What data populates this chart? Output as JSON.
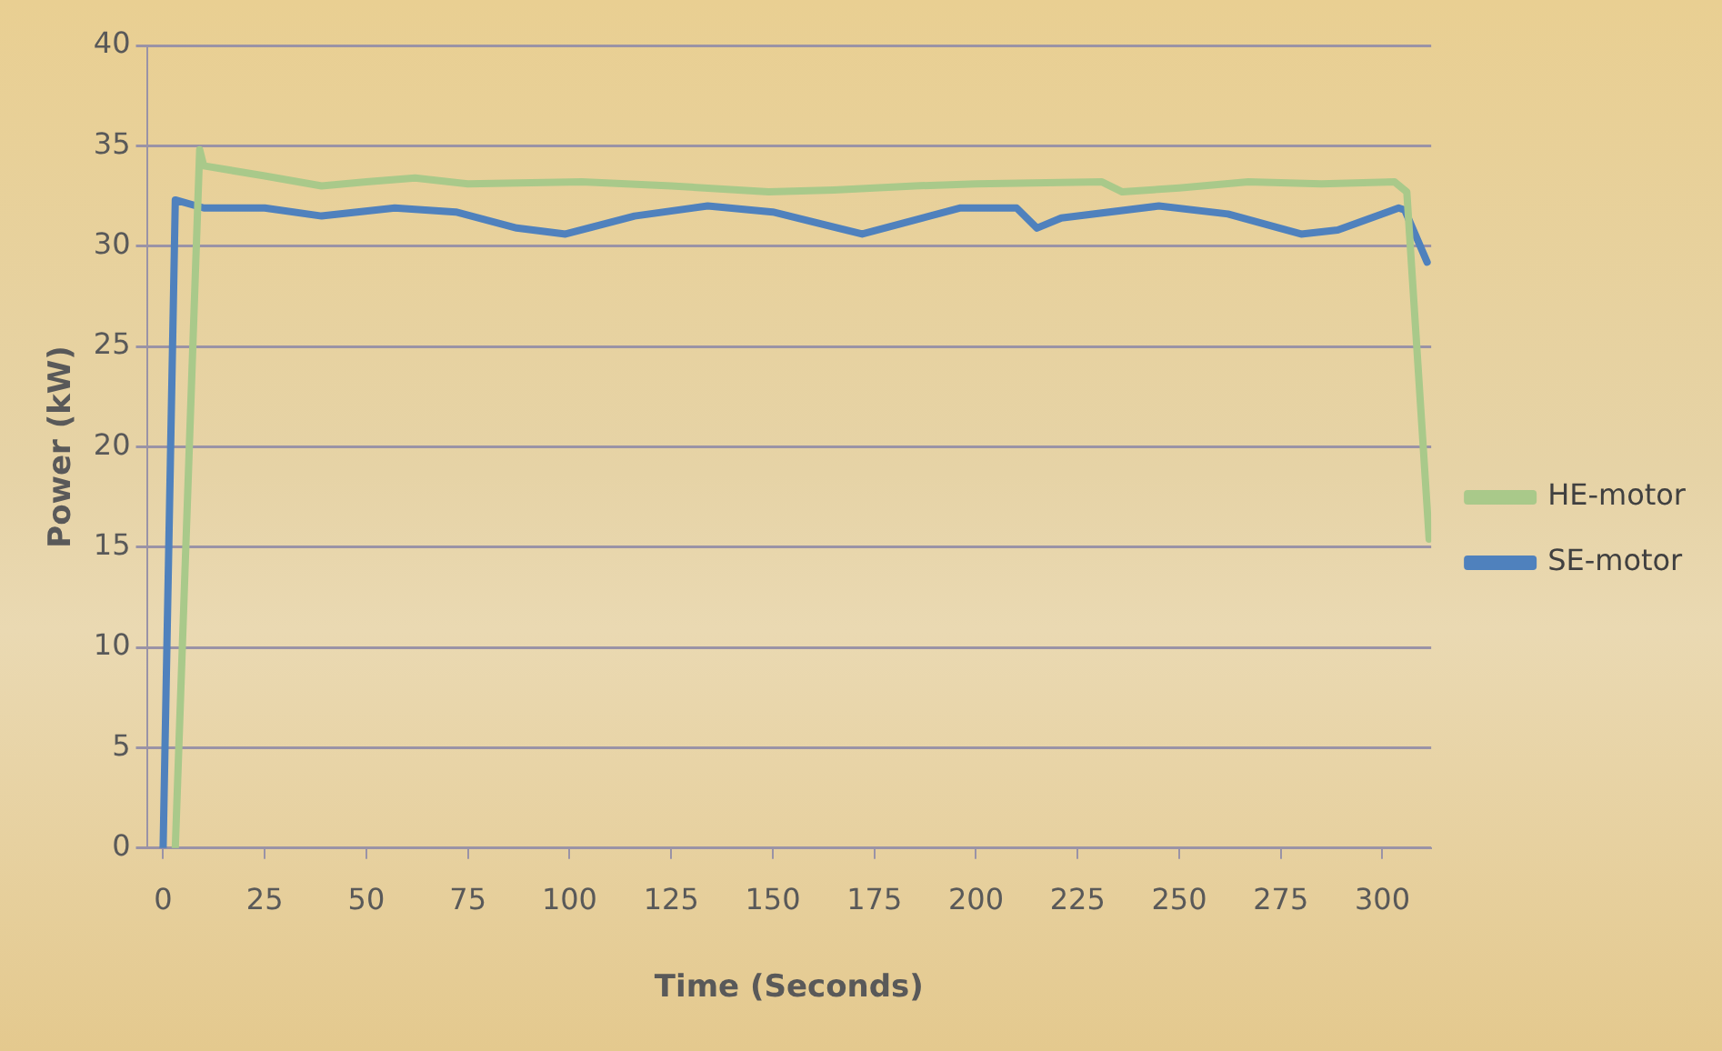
{
  "chart_data": {
    "type": "line",
    "xlabel": "Time (Seconds)",
    "ylabel": "Power (kW)",
    "xlim": [
      -4,
      312
    ],
    "xticks": [
      0,
      25,
      50,
      75,
      100,
      125,
      150,
      175,
      200,
      225,
      250,
      275,
      300
    ],
    "ylim": [
      0,
      40
    ],
    "yticks": [
      0,
      5,
      10,
      15,
      20,
      25,
      30,
      35,
      40
    ],
    "grid": "y",
    "legend": "right",
    "marker": "none",
    "line_style": "solid",
    "series": [
      {
        "name": "HE-motor",
        "color": "#a9c98a",
        "x": [
          3,
          9,
          10,
          25,
          39,
          50,
          62,
          75,
          103,
          125,
          149,
          165,
          185,
          200,
          231,
          236,
          250,
          267,
          285,
          303,
          306,
          311.5
        ],
        "values": [
          0,
          34.8,
          34.0,
          33.5,
          33.0,
          33.2,
          33.4,
          33.1,
          33.2,
          33.0,
          32.7,
          32.8,
          33.0,
          33.1,
          33.2,
          32.7,
          32.9,
          33.2,
          33.1,
          33.2,
          32.7,
          15.4
        ]
      },
      {
        "name": "SE-motor",
        "color": "#4f81bd",
        "x": [
          0,
          3,
          10,
          25,
          39,
          57,
          72,
          87,
          99,
          116,
          134,
          150,
          172,
          196,
          210,
          215,
          221,
          245,
          262,
          280,
          289,
          304,
          305.5,
          311
        ],
        "values": [
          0,
          32.3,
          31.9,
          31.9,
          31.5,
          31.9,
          31.7,
          30.9,
          30.6,
          31.5,
          32.0,
          31.7,
          30.6,
          31.9,
          31.9,
          30.9,
          31.4,
          32.0,
          31.6,
          30.6,
          30.8,
          31.9,
          31.8,
          29.2
        ]
      }
    ]
  }
}
